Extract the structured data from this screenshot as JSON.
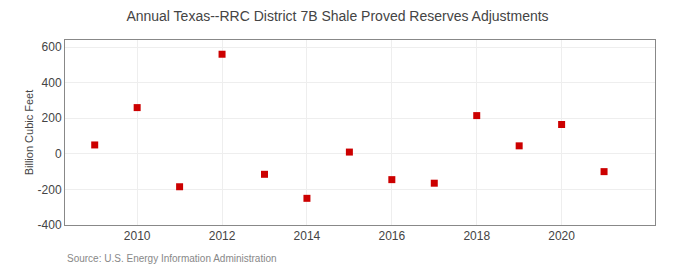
{
  "chart_data": {
    "type": "scatter",
    "title": "Annual Texas--RRC District 7B Shale Proved Reserves Adjustments",
    "ylabel": "Billion Cubic Feet",
    "annotation": "Source: U.S. Energy Information Administration",
    "x": [
      2009,
      2010,
      2011,
      2012,
      2013,
      2014,
      2015,
      2016,
      2017,
      2018,
      2019,
      2020,
      2021
    ],
    "values": [
      50,
      260,
      -185,
      560,
      -115,
      -250,
      10,
      -145,
      -165,
      215,
      45,
      165,
      -100
    ],
    "xlim": [
      2008.3,
      2022.2
    ],
    "xticks": [
      2010,
      2012,
      2014,
      2016,
      2018,
      2020
    ],
    "ylim": [
      -400,
      640
    ],
    "yticks": [
      -400,
      -200,
      0,
      200,
      400,
      600
    ],
    "color": "#cc0000",
    "marker": "square",
    "grid": true
  }
}
